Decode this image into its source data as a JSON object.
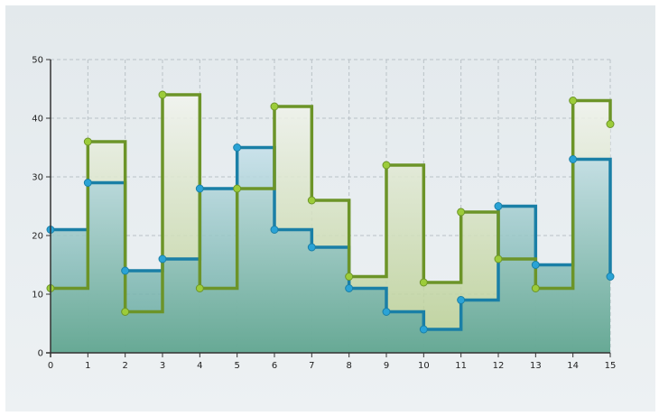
{
  "chart_data": {
    "type": "line",
    "title": "",
    "xlabel": "",
    "ylabel": "",
    "step": "after",
    "xlim": [
      0,
      15
    ],
    "ylim": [
      0,
      50
    ],
    "x": [
      0,
      1,
      2,
      3,
      4,
      5,
      6,
      7,
      8,
      9,
      10,
      11,
      12,
      13,
      14,
      15
    ],
    "x_ticks": [
      "0",
      "1",
      "2",
      "3",
      "4",
      "5",
      "6",
      "7",
      "8",
      "9",
      "10",
      "11",
      "12",
      "13",
      "14",
      "15"
    ],
    "y_ticks": [
      "0",
      "10",
      "20",
      "30",
      "40",
      "50"
    ],
    "grid": true,
    "legend": "none",
    "series": [
      {
        "values": [
          21,
          29,
          14,
          16,
          28,
          35,
          21,
          18,
          11,
          7,
          4,
          9,
          25,
          15,
          33,
          13
        ],
        "line_color": "#1a7fa6",
        "marker_color": "#2aa3d6",
        "fill_top": "#c5e0ea",
        "fill_bottom": "#58a294"
      },
      {
        "values": [
          11,
          36,
          7,
          44,
          11,
          28,
          42,
          26,
          13,
          32,
          12,
          24,
          16,
          11,
          43,
          39
        ],
        "line_color": "#6c9428",
        "marker_color": "#9ccc3a",
        "fill_top": "#f2f4ef",
        "fill_bottom": "#b5cc8c"
      }
    ]
  }
}
